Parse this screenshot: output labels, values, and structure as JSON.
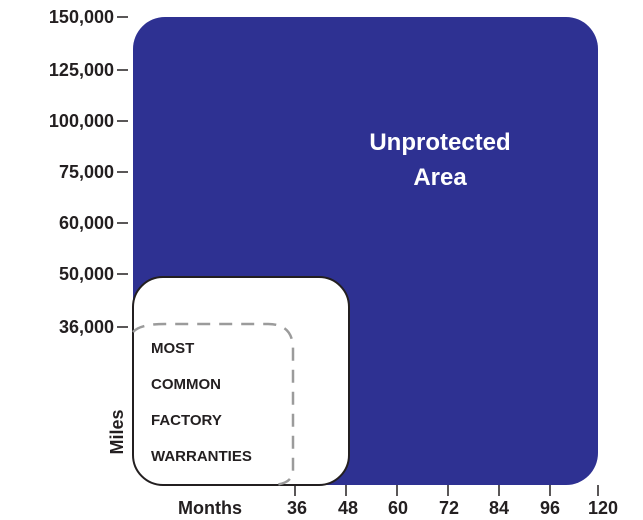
{
  "chart_data": {
    "type": "area",
    "y_axis": {
      "title": "Miles",
      "ticks": [
        "36,000",
        "50,000",
        "60,000",
        "75,000",
        "100,000",
        "125,000",
        "150,000"
      ]
    },
    "x_axis": {
      "title": "Months",
      "ticks": [
        "36",
        "48",
        "60",
        "72",
        "84",
        "96",
        "120"
      ]
    },
    "regions": [
      {
        "label_lines": [
          "Unprotected",
          "Area"
        ],
        "months": 120,
        "miles": 150000,
        "color": "#2e3192"
      },
      {
        "label_lines": [],
        "months": 48,
        "miles": 50000,
        "color": "#ffffff"
      },
      {
        "label_lines": [
          "MOST",
          "COMMON",
          "FACTORY",
          "WARRANTIES"
        ],
        "months": 36,
        "miles": 36000,
        "color": "#9b9b9b",
        "style": "dashed"
      }
    ]
  }
}
